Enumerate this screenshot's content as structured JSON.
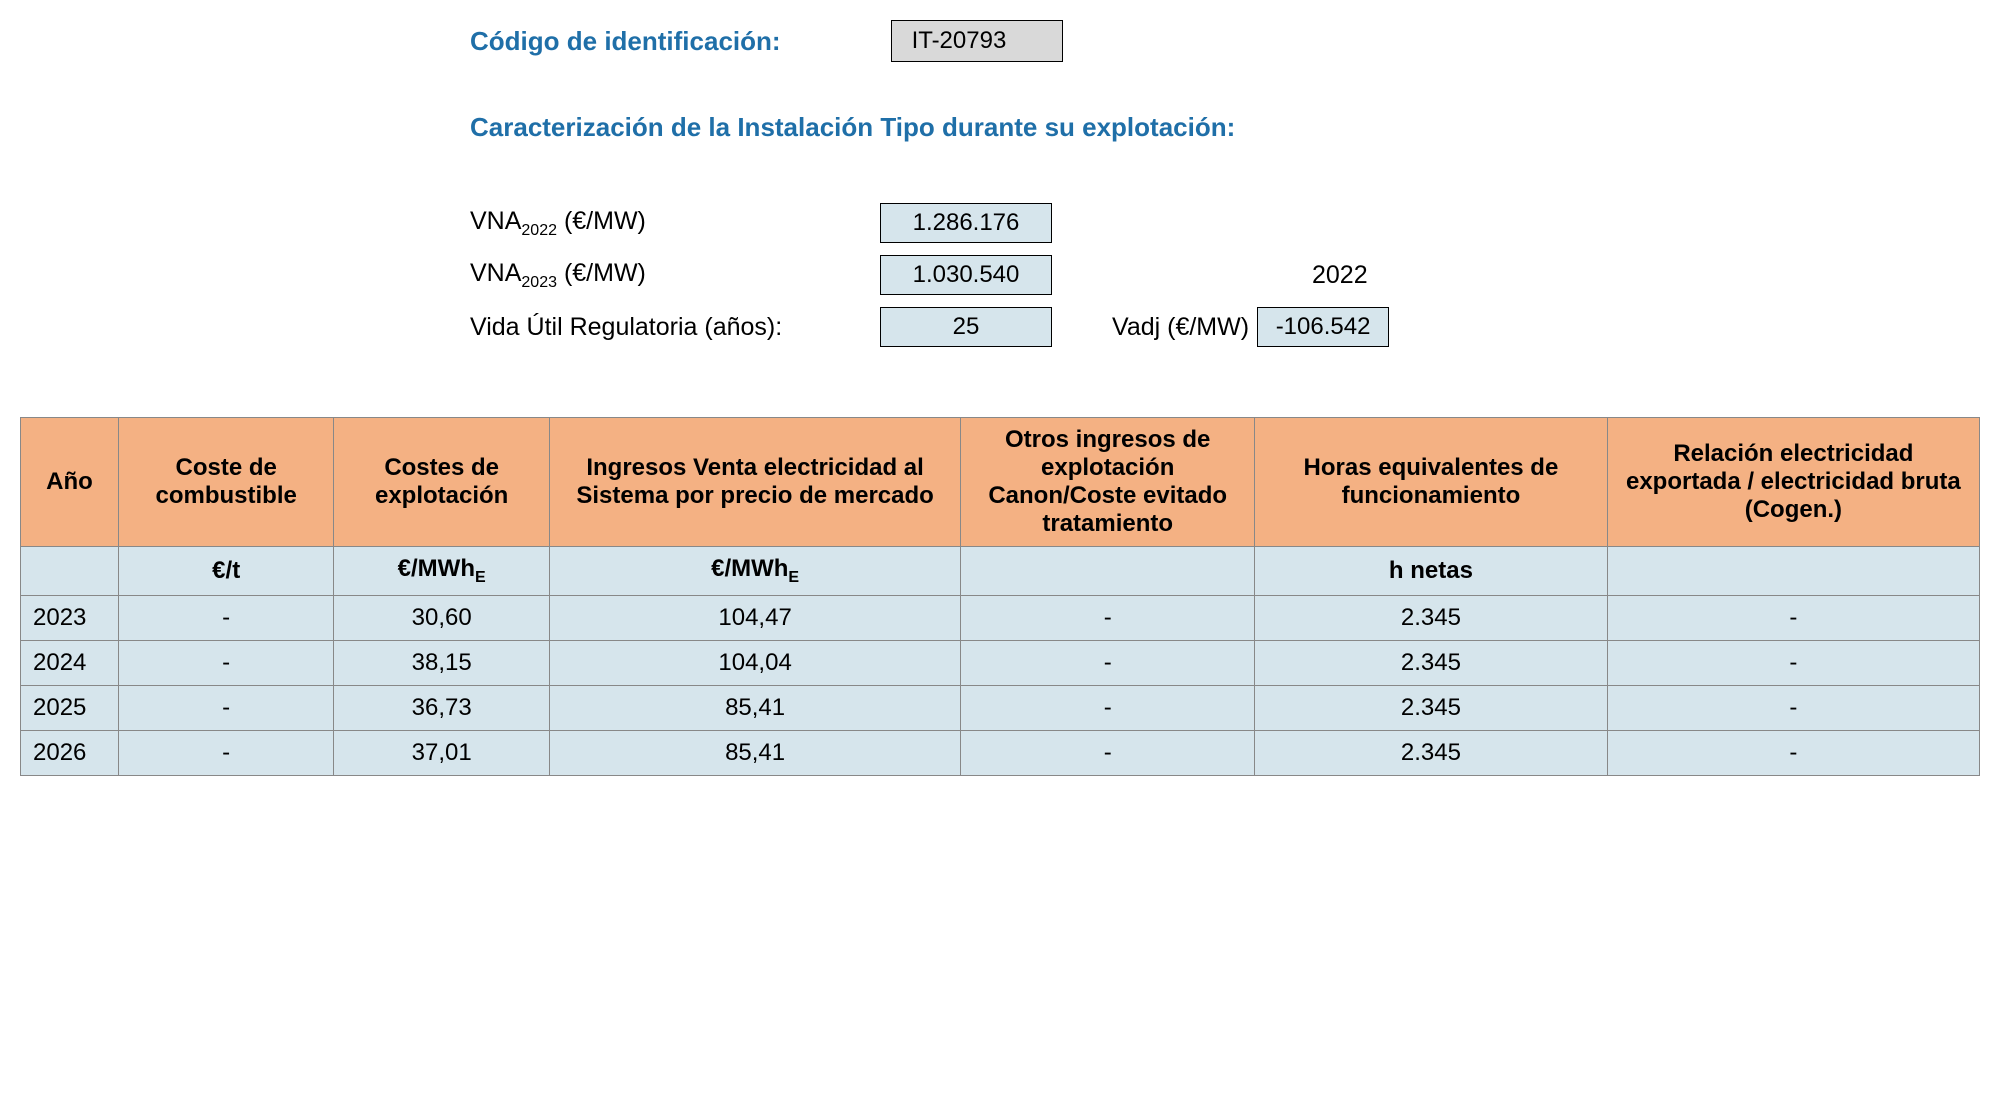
{
  "header": {
    "id_label": "Código de identificación:",
    "id_value": "IT-20793",
    "section_title": "Caracterización de la Instalación Tipo durante su explotación:"
  },
  "params": {
    "vna2022_label_prefix": "VNA",
    "vna2022_sub": "2022",
    "vna2022_unit": " (€/MW)",
    "vna2022_value": "1.286.176",
    "vna2023_label_prefix": "VNA",
    "vna2023_sub": "2023",
    "vna2023_unit": " (€/MW)",
    "vna2023_value": "1.030.540",
    "year_side": "2022",
    "vida_label": "Vida Útil Regulatoria (años):",
    "vida_value": "25",
    "vadj_label": "Vadj (€/MW)",
    "vadj_value": "-106.542"
  },
  "table": {
    "headers": {
      "col1": "Año",
      "col2": "Coste de combustible",
      "col3": "Costes de explotación",
      "col4": "Ingresos Venta electricidad al Sistema por precio de mercado",
      "col5": "Otros ingresos de explotación Canon/Coste evitado tratamiento",
      "col6": "Horas equivalentes de funcionamiento",
      "col7": "Relación electricidad exportada / electricidad bruta (Cogen.)"
    },
    "units": {
      "col1": "",
      "col2": "€/t",
      "col3_prefix": "€/MWh",
      "col3_sub": "E",
      "col4_prefix": "€/MWh",
      "col4_sub": "E",
      "col5": "",
      "col6": "h netas",
      "col7": ""
    },
    "rows": [
      {
        "year": "2023",
        "c2": "-",
        "c3": "30,60",
        "c4": "104,47",
        "c5": "-",
        "c6": "2.345",
        "c7": "-"
      },
      {
        "year": "2024",
        "c2": "-",
        "c3": "38,15",
        "c4": "104,04",
        "c5": "-",
        "c6": "2.345",
        "c7": "-"
      },
      {
        "year": "2025",
        "c2": "-",
        "c3": "36,73",
        "c4": "85,41",
        "c5": "-",
        "c6": "2.345",
        "c7": "-"
      },
      {
        "year": "2026",
        "c2": "-",
        "c3": "37,01",
        "c4": "85,41",
        "c5": "-",
        "c6": "2.345",
        "c7": "-"
      }
    ]
  },
  "colors": {
    "header_bg": "#f4b183",
    "cell_bg": "#d6e5ec",
    "id_bg": "#d9d9d9",
    "label_blue": "#1f6fa8",
    "border": "#888888"
  }
}
